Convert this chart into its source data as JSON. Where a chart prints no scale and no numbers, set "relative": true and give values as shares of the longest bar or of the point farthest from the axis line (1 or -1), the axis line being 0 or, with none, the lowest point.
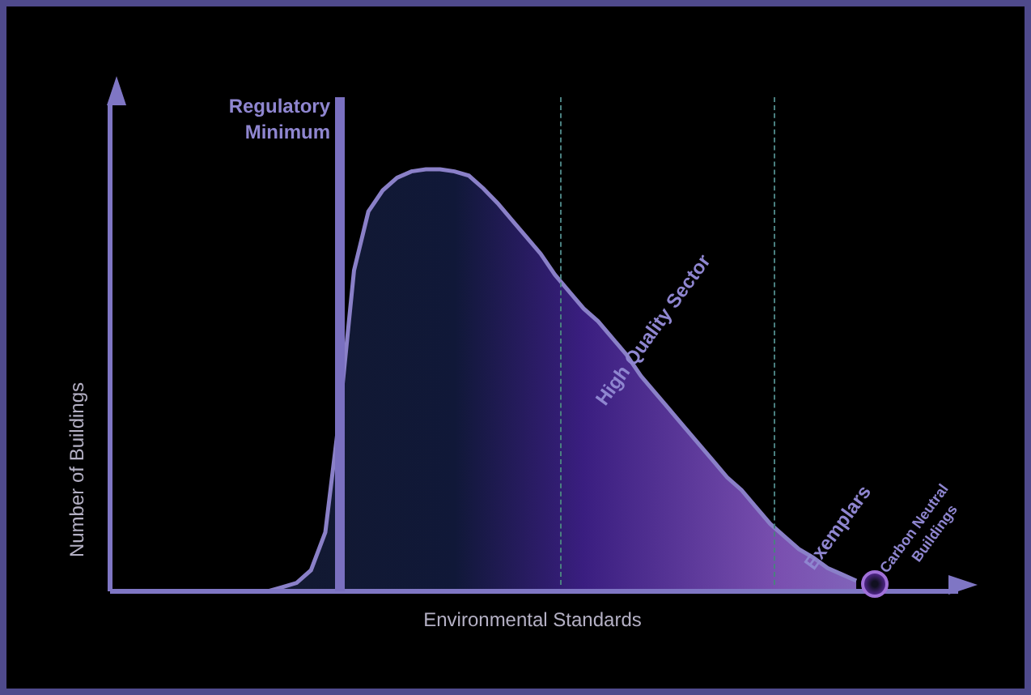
{
  "chart_data": {
    "type": "area",
    "relative": true,
    "xlabel": "Environmental Standards",
    "ylabel": "Number of Buildings",
    "categories": [
      null,
      null,
      null,
      null,
      null,
      null,
      null,
      null,
      null,
      null,
      null,
      null,
      null,
      null,
      null,
      null,
      null,
      null,
      null,
      null,
      null,
      null,
      null,
      null,
      null,
      null,
      null,
      null,
      null,
      null,
      null,
      null,
      null,
      null,
      null,
      null,
      null,
      null,
      null,
      null,
      null,
      null,
      null,
      null,
      null,
      null,
      null,
      null,
      null,
      null,
      null,
      null,
      null,
      null,
      null,
      null,
      null,
      null,
      null,
      null,
      null
    ],
    "series": [
      {
        "color": "#8a80c8",
        "values": [
          null,
          null,
          null,
          null,
          null,
          null,
          null,
          null,
          null,
          null,
          null,
          0,
          0.01,
          0.02,
          0.05,
          0.14,
          0.42,
          0.76,
          0.9,
          0.95,
          0.98,
          0.995,
          1,
          1,
          0.995,
          0.985,
          0.955,
          0.92,
          0.88,
          0.84,
          0.8,
          0.75,
          0.71,
          0.67,
          0.64,
          0.6,
          0.56,
          0.51,
          0.47,
          0.43,
          0.39,
          0.35,
          0.31,
          0.27,
          0.24,
          0.2,
          0.16,
          0.13,
          0.1,
          0.08,
          0.055,
          0.04,
          0.025,
          null,
          null,
          null,
          null,
          null,
          null,
          null,
          null
        ]
      }
    ],
    "annotations": [
      "Regulatory Minimum",
      "High Quality Sector",
      "Exemplars",
      "Carbon Neutral Buildings"
    ]
  }
}
